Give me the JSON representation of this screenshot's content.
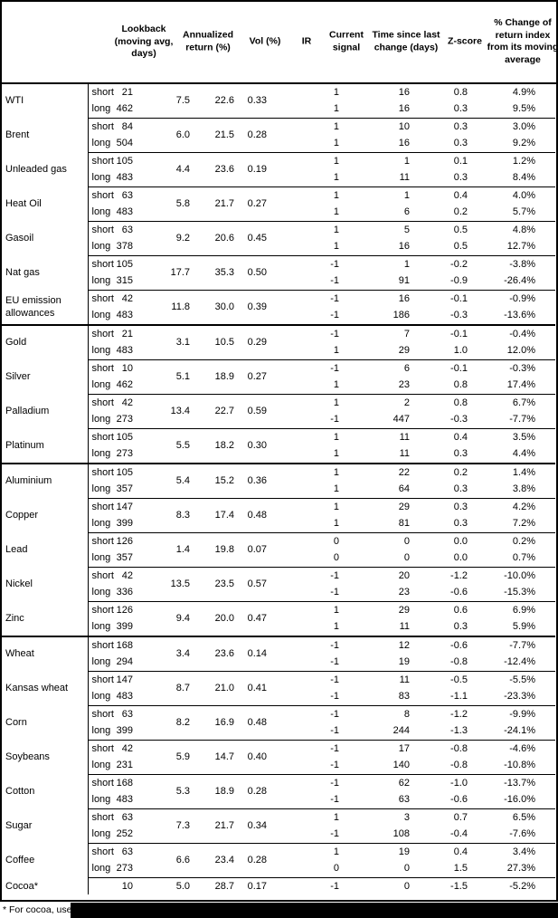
{
  "header": {
    "columns": [
      "Lookback (moving avg, days)",
      "Annualized return (%)",
      "Vol (%)",
      "IR",
      "Current signal",
      "Time since last change (days)",
      "Z-score",
      "% Change of return index from its moving average"
    ]
  },
  "rows": [
    {
      "name": "WTI",
      "annualized": "7.5",
      "vol": "22.6",
      "ir": "0.33",
      "legs": [
        {
          "label": "short",
          "lookback": "21",
          "signal": "1",
          "time": "16",
          "zscore": "0.8",
          "pct": "4.9%"
        },
        {
          "label": "long",
          "lookback": "462",
          "signal": "1",
          "time": "16",
          "zscore": "0.3",
          "pct": "9.5%"
        }
      ]
    },
    {
      "name": "Brent",
      "annualized": "6.0",
      "vol": "21.5",
      "ir": "0.28",
      "legs": [
        {
          "label": "short",
          "lookback": "84",
          "signal": "1",
          "time": "10",
          "zscore": "0.3",
          "pct": "3.0%"
        },
        {
          "label": "long",
          "lookback": "504",
          "signal": "1",
          "time": "16",
          "zscore": "0.3",
          "pct": "9.2%"
        }
      ]
    },
    {
      "name": "Unleaded gas",
      "annualized": "4.4",
      "vol": "23.6",
      "ir": "0.19",
      "legs": [
        {
          "label": "short",
          "lookback": "105",
          "signal": "1",
          "time": "1",
          "zscore": "0.1",
          "pct": "1.2%"
        },
        {
          "label": "long",
          "lookback": "483",
          "signal": "1",
          "time": "11",
          "zscore": "0.3",
          "pct": "8.4%"
        }
      ]
    },
    {
      "name": "Heat Oil",
      "annualized": "5.8",
      "vol": "21.7",
      "ir": "0.27",
      "legs": [
        {
          "label": "short",
          "lookback": "63",
          "signal": "1",
          "time": "1",
          "zscore": "0.4",
          "pct": "4.0%"
        },
        {
          "label": "long",
          "lookback": "483",
          "signal": "1",
          "time": "6",
          "zscore": "0.2",
          "pct": "5.7%"
        }
      ]
    },
    {
      "name": "Gasoil",
      "annualized": "9.2",
      "vol": "20.6",
      "ir": "0.45",
      "legs": [
        {
          "label": "short",
          "lookback": "63",
          "signal": "1",
          "time": "5",
          "zscore": "0.5",
          "pct": "4.8%"
        },
        {
          "label": "long",
          "lookback": "378",
          "signal": "1",
          "time": "16",
          "zscore": "0.5",
          "pct": "12.7%"
        }
      ]
    },
    {
      "name": "Nat gas",
      "annualized": "17.7",
      "vol": "35.3",
      "ir": "0.50",
      "legs": [
        {
          "label": "short",
          "lookback": "105",
          "signal": "-1",
          "time": "1",
          "zscore": "-0.2",
          "pct": "-3.8%"
        },
        {
          "label": "long",
          "lookback": "315",
          "signal": "-1",
          "time": "91",
          "zscore": "-0.9",
          "pct": "-26.4%"
        }
      ]
    },
    {
      "name": "EU emission allowances",
      "annualized": "11.8",
      "vol": "30.0",
      "ir": "0.39",
      "legs": [
        {
          "label": "short",
          "lookback": "42",
          "signal": "-1",
          "time": "16",
          "zscore": "-0.1",
          "pct": "-0.9%"
        },
        {
          "label": "long",
          "lookback": "483",
          "signal": "-1",
          "time": "186",
          "zscore": "-0.3",
          "pct": "-13.6%"
        }
      ]
    },
    {
      "name": "Gold",
      "section_start": true,
      "annualized": "3.1",
      "vol": "10.5",
      "ir": "0.29",
      "legs": [
        {
          "label": "short",
          "lookback": "21",
          "signal": "-1",
          "time": "7",
          "zscore": "-0.1",
          "pct": "-0.4%"
        },
        {
          "label": "long",
          "lookback": "483",
          "signal": "1",
          "time": "29",
          "zscore": "1.0",
          "pct": "12.0%"
        }
      ]
    },
    {
      "name": "Silver",
      "annualized": "5.1",
      "vol": "18.9",
      "ir": "0.27",
      "legs": [
        {
          "label": "short",
          "lookback": "10",
          "signal": "-1",
          "time": "6",
          "zscore": "-0.1",
          "pct": "-0.3%"
        },
        {
          "label": "long",
          "lookback": "462",
          "signal": "1",
          "time": "23",
          "zscore": "0.8",
          "pct": "17.4%"
        }
      ]
    },
    {
      "name": "Palladium",
      "annualized": "13.4",
      "vol": "22.7",
      "ir": "0.59",
      "legs": [
        {
          "label": "short",
          "lookback": "42",
          "signal": "1",
          "time": "2",
          "zscore": "0.8",
          "pct": "6.7%"
        },
        {
          "label": "long",
          "lookback": "273",
          "signal": "-1",
          "time": "447",
          "zscore": "-0.3",
          "pct": "-7.7%"
        }
      ]
    },
    {
      "name": "Platinum",
      "annualized": "5.5",
      "vol": "18.2",
      "ir": "0.30",
      "legs": [
        {
          "label": "short",
          "lookback": "105",
          "signal": "1",
          "time": "11",
          "zscore": "0.4",
          "pct": "3.5%"
        },
        {
          "label": "long",
          "lookback": "273",
          "signal": "1",
          "time": "11",
          "zscore": "0.3",
          "pct": "4.4%"
        }
      ]
    },
    {
      "name": "Aluminium",
      "section_start": true,
      "annualized": "5.4",
      "vol": "15.2",
      "ir": "0.36",
      "legs": [
        {
          "label": "short",
          "lookback": "105",
          "signal": "1",
          "time": "22",
          "zscore": "0.2",
          "pct": "1.4%"
        },
        {
          "label": "long",
          "lookback": "357",
          "signal": "1",
          "time": "64",
          "zscore": "0.3",
          "pct": "3.8%"
        }
      ]
    },
    {
      "name": "Copper",
      "annualized": "8.3",
      "vol": "17.4",
      "ir": "0.48",
      "legs": [
        {
          "label": "short",
          "lookback": "147",
          "signal": "1",
          "time": "29",
          "zscore": "0.3",
          "pct": "4.2%"
        },
        {
          "label": "long",
          "lookback": "399",
          "signal": "1",
          "time": "81",
          "zscore": "0.3",
          "pct": "7.2%"
        }
      ]
    },
    {
      "name": "Lead",
      "annualized": "1.4",
      "vol": "19.8",
      "ir": "0.07",
      "legs": [
        {
          "label": "short",
          "lookback": "126",
          "signal": "0",
          "time": "0",
          "zscore": "0.0",
          "pct": "0.2%"
        },
        {
          "label": "long",
          "lookback": "357",
          "signal": "0",
          "time": "0",
          "zscore": "0.0",
          "pct": "0.7%"
        }
      ]
    },
    {
      "name": "Nickel",
      "annualized": "13.5",
      "vol": "23.5",
      "ir": "0.57",
      "legs": [
        {
          "label": "short",
          "lookback": "42",
          "signal": "-1",
          "time": "20",
          "zscore": "-1.2",
          "pct": "-10.0%"
        },
        {
          "label": "long",
          "lookback": "336",
          "signal": "-1",
          "time": "23",
          "zscore": "-0.6",
          "pct": "-15.3%"
        }
      ]
    },
    {
      "name": "Zinc",
      "annualized": "9.4",
      "vol": "20.0",
      "ir": "0.47",
      "legs": [
        {
          "label": "short",
          "lookback": "126",
          "signal": "1",
          "time": "29",
          "zscore": "0.6",
          "pct": "6.9%"
        },
        {
          "label": "long",
          "lookback": "399",
          "signal": "1",
          "time": "11",
          "zscore": "0.3",
          "pct": "5.9%"
        }
      ]
    },
    {
      "name": "Wheat",
      "section_start": true,
      "annualized": "3.4",
      "vol": "23.6",
      "ir": "0.14",
      "legs": [
        {
          "label": "short",
          "lookback": "168",
          "signal": "-1",
          "time": "12",
          "zscore": "-0.6",
          "pct": "-7.7%"
        },
        {
          "label": "long",
          "lookback": "294",
          "signal": "-1",
          "time": "19",
          "zscore": "-0.8",
          "pct": "-12.4%"
        }
      ]
    },
    {
      "name": "Kansas wheat",
      "annualized": "8.7",
      "vol": "21.0",
      "ir": "0.41",
      "legs": [
        {
          "label": "short",
          "lookback": "147",
          "signal": "-1",
          "time": "11",
          "zscore": "-0.5",
          "pct": "-5.5%"
        },
        {
          "label": "long",
          "lookback": "483",
          "signal": "-1",
          "time": "83",
          "zscore": "-1.1",
          "pct": "-23.3%"
        }
      ]
    },
    {
      "name": "Corn",
      "annualized": "8.2",
      "vol": "16.9",
      "ir": "0.48",
      "legs": [
        {
          "label": "short",
          "lookback": "63",
          "signal": "-1",
          "time": "8",
          "zscore": "-1.2",
          "pct": "-9.9%"
        },
        {
          "label": "long",
          "lookback": "399",
          "signal": "-1",
          "time": "244",
          "zscore": "-1.3",
          "pct": "-24.1%"
        }
      ]
    },
    {
      "name": "Soybeans",
      "annualized": "5.9",
      "vol": "14.7",
      "ir": "0.40",
      "legs": [
        {
          "label": "short",
          "lookback": "42",
          "signal": "-1",
          "time": "17",
          "zscore": "-0.8",
          "pct": "-4.6%"
        },
        {
          "label": "long",
          "lookback": "231",
          "signal": "-1",
          "time": "140",
          "zscore": "-0.8",
          "pct": "-10.8%"
        }
      ]
    },
    {
      "name": "Cotton",
      "annualized": "5.3",
      "vol": "18.9",
      "ir": "0.28",
      "legs": [
        {
          "label": "short",
          "lookback": "168",
          "signal": "-1",
          "time": "62",
          "zscore": "-1.0",
          "pct": "-13.7%"
        },
        {
          "label": "long",
          "lookback": "483",
          "signal": "-1",
          "time": "63",
          "zscore": "-0.6",
          "pct": "-16.0%"
        }
      ]
    },
    {
      "name": "Sugar",
      "annualized": "7.3",
      "vol": "21.7",
      "ir": "0.34",
      "legs": [
        {
          "label": "short",
          "lookback": "63",
          "signal": "1",
          "time": "3",
          "zscore": "0.7",
          "pct": "6.5%"
        },
        {
          "label": "long",
          "lookback": "252",
          "signal": "-1",
          "time": "108",
          "zscore": "-0.4",
          "pct": "-7.6%"
        }
      ]
    },
    {
      "name": "Coffee",
      "annualized": "6.6",
      "vol": "23.4",
      "ir": "0.28",
      "legs": [
        {
          "label": "short",
          "lookback": "63",
          "signal": "1",
          "time": "19",
          "zscore": "0.4",
          "pct": "3.4%"
        },
        {
          "label": "long",
          "lookback": "273",
          "signal": "0",
          "time": "0",
          "zscore": "1.5",
          "pct": "27.3%"
        }
      ]
    },
    {
      "name": "Cocoa*",
      "annualized": "5.0",
      "vol": "28.7",
      "ir": "0.17",
      "legs": [
        {
          "label": "",
          "lookback": "10",
          "signal": "-1",
          "time": "0",
          "zscore": "-1.5",
          "pct": "-5.2%"
        }
      ]
    }
  ],
  "footnote": "* For cocoa, uses"
}
